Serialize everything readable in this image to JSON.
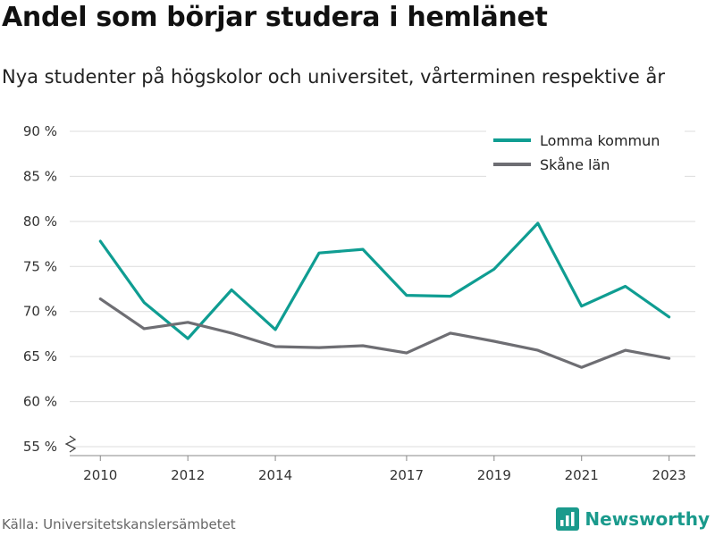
{
  "header": {
    "title": "Andel som börjar studera i hemlänet",
    "subtitle": "Nya studenter på högskolor och universitet, vårterminen respektive år"
  },
  "footer": {
    "source": "Källa: Universitetskanslersämbetet",
    "brand": "Newsworthy"
  },
  "chart_data": {
    "type": "line",
    "title": "Andel som börjar studera i hemlänet",
    "subtitle": "Nya studenter på högskolor och universitet, vårterminen respektive år",
    "xlabel": "",
    "ylabel": "",
    "x": [
      2010,
      2011,
      2012,
      2013,
      2014,
      2015,
      2016,
      2017,
      2018,
      2019,
      2020,
      2021,
      2022,
      2023
    ],
    "x_ticks": [
      2010,
      2012,
      2014,
      2017,
      2019,
      2021,
      2023
    ],
    "y_ticks": [
      55,
      60,
      65,
      70,
      75,
      80,
      85,
      90
    ],
    "y_tick_suffix": " %",
    "ylim": [
      55,
      90
    ],
    "xlim": [
      2009.3,
      2023.6
    ],
    "grid": true,
    "axis_break": true,
    "legend_position": "top-right",
    "series": [
      {
        "name": "Lomma kommun",
        "color": "#0f9d92",
        "values": [
          77.8,
          71.0,
          67.0,
          72.4,
          68.0,
          76.5,
          76.9,
          71.8,
          71.7,
          74.7,
          79.8,
          70.6,
          72.8,
          69.4
        ]
      },
      {
        "name": "Skåne län",
        "color": "#6e6e73",
        "values": [
          71.4,
          68.1,
          68.8,
          67.6,
          66.1,
          66.0,
          66.2,
          65.4,
          67.6,
          66.7,
          65.7,
          63.8,
          65.7,
          64.8
        ]
      }
    ]
  }
}
